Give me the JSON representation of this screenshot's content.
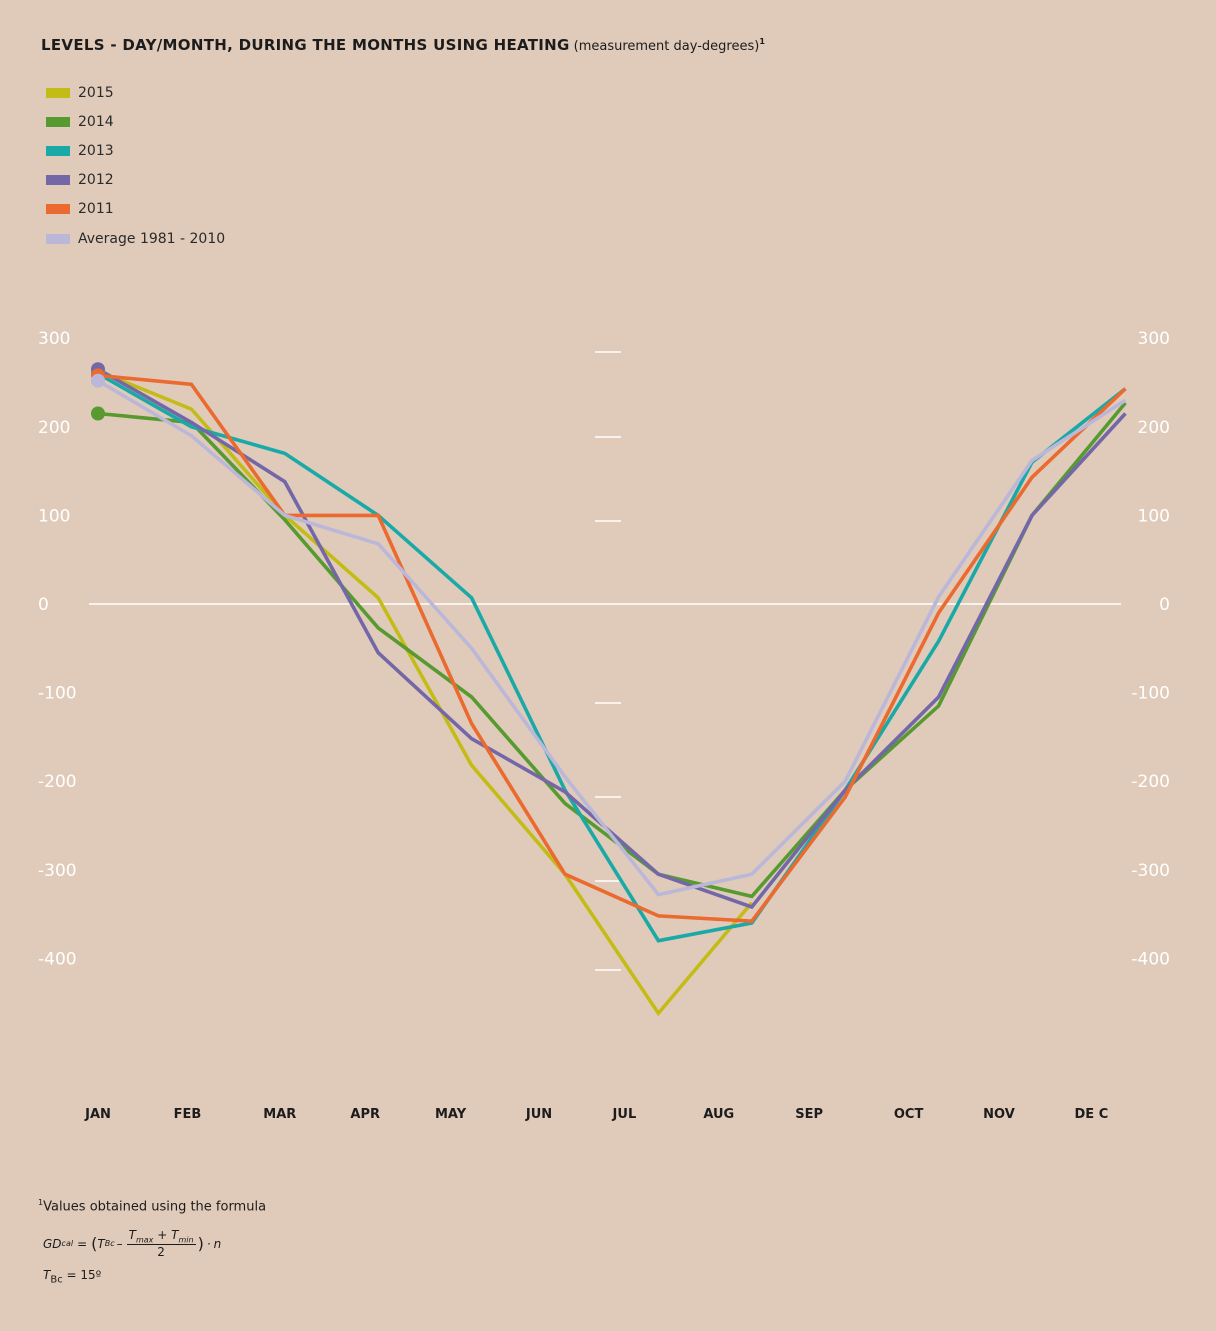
{
  "title": {
    "main": "LEVELS - DAY/MONTH, DURING THE MONTHS USING HEATING",
    "sub": "(measurement day-degrees)",
    "footnote_mark": "1"
  },
  "chart_data": {
    "type": "line",
    "categories": [
      "JAN",
      "FEB",
      "MAR",
      "APR",
      "MAY",
      "JUN",
      "JUL",
      "AUG",
      "SEP",
      "OCT",
      "NOV",
      "DE C"
    ],
    "ylim": [
      -490,
      300
    ],
    "yticks": [
      "300",
      "200",
      "100",
      "0",
      "-100",
      "-200",
      "-300",
      "-400"
    ],
    "ytick_values": [
      300,
      200,
      100,
      0,
      -100,
      -200,
      -300,
      -400
    ],
    "legend_position": "top-left",
    "grid": false,
    "series": [
      {
        "name": "2015",
        "color": "#c4bc16",
        "values": [
          263,
          220,
          100,
          7,
          -182,
          -305,
          -462,
          -337,
          null,
          null,
          null,
          null
        ]
      },
      {
        "name": "2014",
        "color": "#579a30",
        "values": [
          215,
          205,
          95,
          -27,
          -105,
          -225,
          -305,
          -330,
          -210,
          -115,
          100,
          227
        ]
      },
      {
        "name": "2013",
        "color": "#1aa9a6",
        "values": [
          260,
          200,
          170,
          100,
          7,
          -210,
          -380,
          -360,
          -210,
          -42,
          160,
          243
        ]
      },
      {
        "name": "2012",
        "color": "#7467a8",
        "values": [
          265,
          205,
          138,
          -55,
          -152,
          -212,
          -305,
          -342,
          -210,
          -105,
          100,
          215
        ]
      },
      {
        "name": "2011",
        "color": "#ea6a2f",
        "values": [
          258,
          248,
          100,
          100,
          -135,
          -305,
          -352,
          -358,
          -218,
          -10,
          143,
          243
        ]
      },
      {
        "name": "Average 1981 - 2010",
        "color": "#bbb7d8",
        "values": [
          252,
          190,
          100,
          68,
          -50,
          -195,
          -328,
          -305,
          -200,
          8,
          162,
          230
        ]
      }
    ]
  },
  "footnote": {
    "mark": "1",
    "text": "Values obtained using the formula"
  },
  "formula": {
    "lhs": "GD",
    "lhs_sub": "cal",
    "eq": "=",
    "open": "(",
    "t": "T",
    "bc_sub": "Bc",
    "minus": "–",
    "tmax_sub": "max",
    "plus": "+",
    "tmin_sub": "min",
    "den": "2",
    "close": ")",
    "dot": "·",
    "n": "n"
  },
  "tbc": {
    "t": "T",
    "sub": "Bc",
    "value": "= 15º"
  }
}
